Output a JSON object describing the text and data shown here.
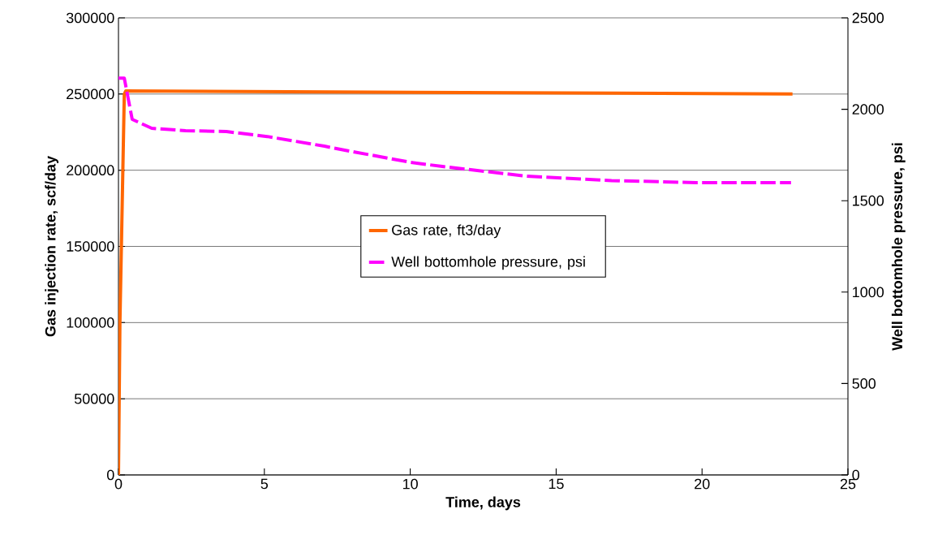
{
  "chart_data": {
    "type": "line",
    "xlabel": "Time, days",
    "ylabel": "Gas injection rate, scf/day",
    "y2label": "Well bottomhole pressure, psi",
    "xlim": [
      0,
      25
    ],
    "xticks": [
      0,
      5,
      10,
      15,
      20,
      25
    ],
    "ylim": [
      0,
      300000
    ],
    "yticks": [
      0,
      50000,
      100000,
      150000,
      200000,
      250000,
      300000
    ],
    "y2lim": [
      0,
      2500
    ],
    "y2ticks": [
      0,
      500,
      1000,
      1500,
      2000,
      2500
    ],
    "grid": "y",
    "legend": "center",
    "marker": "none",
    "series": [
      {
        "name": "Gas rate, ft3/day",
        "color": "#ff6600",
        "line_style": "solid",
        "x": [
          0,
          0.05,
          0.15,
          0.2,
          0.25,
          23.1
        ],
        "values": [
          0,
          100000,
          200000,
          250000,
          252000,
          250000
        ]
      },
      {
        "name": "Well bottomhole pressure, psi",
        "color": "#ff00ff",
        "line_style": "dashed",
        "axis": "y2",
        "x": [
          0,
          0.2,
          0.47,
          1.14,
          2.3,
          3.7,
          5.1,
          7.06,
          7.9,
          10,
          11.1,
          14,
          16.9,
          19.8,
          23.05
        ],
        "values": [
          2170,
          2170,
          1945,
          1896,
          1883,
          1878,
          1851,
          1798,
          1772,
          1710,
          1687,
          1634,
          1610,
          1599,
          1599
        ]
      }
    ]
  }
}
